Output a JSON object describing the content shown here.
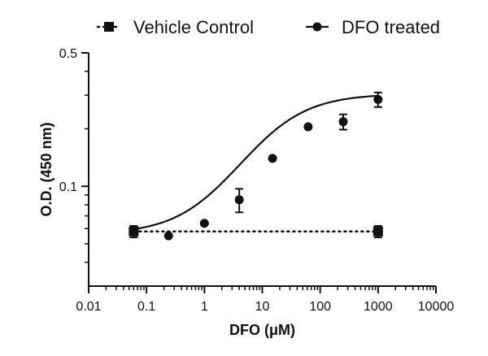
{
  "chart_data": {
    "type": "scatter",
    "title": "",
    "xlabel": "DFO (μM)",
    "ylabel": "O.D. (450 nm)",
    "x_scale": "log",
    "y_scale": "log",
    "xlim": [
      0.01,
      10000
    ],
    "ylim": [
      0.03,
      0.5
    ],
    "x_ticks": [
      0.01,
      0.1,
      1,
      10,
      100,
      1000,
      10000
    ],
    "x_tick_labels": [
      "0.01",
      "0.1",
      "1",
      "10",
      "100",
      "1000",
      "10000"
    ],
    "y_ticks": [
      0.1,
      0.5
    ],
    "y_tick_labels": [
      "0.1",
      "0.5"
    ],
    "legend_position": "top",
    "series": [
      {
        "name": "Vehicle Control",
        "marker": "square",
        "line": "dotted",
        "color": "#111111",
        "points": [
          {
            "x": 0.06,
            "y": 0.058,
            "err": 0.004
          },
          {
            "x": 1000,
            "y": 0.058,
            "err": 0.004
          }
        ]
      },
      {
        "name": "DFO treated",
        "marker": "circle",
        "line": "solid-fit",
        "color": "#111111",
        "points": [
          {
            "x": 0.24,
            "y": 0.055,
            "err": 0
          },
          {
            "x": 1,
            "y": 0.064,
            "err": 0
          },
          {
            "x": 4,
            "y": 0.085,
            "err": 0.012
          },
          {
            "x": 15,
            "y": 0.14,
            "err": 0
          },
          {
            "x": 62,
            "y": 0.205,
            "err": 0
          },
          {
            "x": 250,
            "y": 0.218,
            "err": 0.02
          },
          {
            "x": 1000,
            "y": 0.285,
            "err": 0.025
          }
        ],
        "fit": {
          "model": "4PL",
          "bottom": 0.056,
          "top": 0.305,
          "ec50": 12,
          "hill": 0.8
        }
      }
    ]
  }
}
